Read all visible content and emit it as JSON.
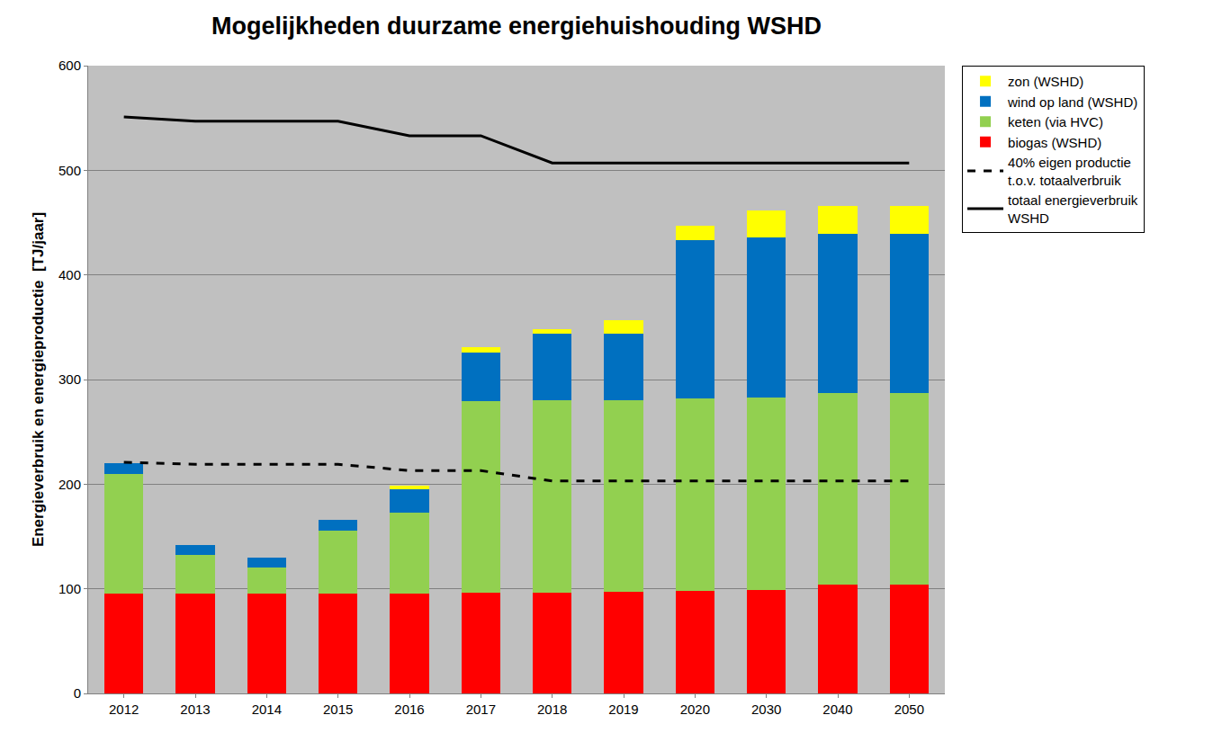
{
  "chart_data": {
    "type": "bar",
    "stacked": true,
    "title": "Mogelijkheden duurzame energiehuishouding WSHD",
    "y_label": "Energieverbruik en energieproductie  [TJ/jaar]",
    "categories": [
      "2012",
      "2013",
      "2014",
      "2015",
      "2016",
      "2017",
      "2018",
      "2019",
      "2020",
      "2030",
      "2040",
      "2050"
    ],
    "ylim": [
      0,
      600
    ],
    "yticks": [
      0,
      100,
      200,
      300,
      400,
      500,
      600
    ],
    "grid": true,
    "legend": "right",
    "series": [
      {
        "name": "biogas (WSHD)",
        "type": "bar",
        "color": "#ff0000",
        "values": [
          95,
          95,
          95,
          95,
          95,
          96,
          96,
          97,
          98,
          99,
          104,
          104
        ]
      },
      {
        "name": "keten (via HVC)",
        "type": "bar",
        "color": "#92d050",
        "values": [
          115,
          37,
          25,
          61,
          78,
          183,
          184,
          183,
          184,
          184,
          183,
          183
        ]
      },
      {
        "name": "wind op land (WSHD)",
        "type": "bar",
        "color": "#0070c0",
        "values": [
          10,
          10,
          10,
          10,
          22,
          47,
          64,
          64,
          151,
          153,
          152,
          152
        ]
      },
      {
        "name": "zon (WSHD)",
        "type": "bar",
        "color": "#ffff00",
        "values": [
          0,
          0,
          0,
          0,
          4,
          5,
          4,
          13,
          14,
          26,
          27,
          27
        ]
      },
      {
        "name": "40% eigen productie t.o.v. totaalverbruik",
        "type": "line",
        "color": "#000000",
        "line_style": "dash",
        "values": [
          221,
          219,
          219,
          219,
          213,
          213,
          203,
          203,
          203,
          203,
          203,
          203
        ]
      },
      {
        "name": "totaal energieverbruik WSHD",
        "type": "line",
        "color": "#000000",
        "line_style": "solid",
        "values": [
          551,
          547,
          547,
          547,
          533,
          533,
          507,
          507,
          507,
          507,
          507,
          507
        ]
      }
    ]
  }
}
